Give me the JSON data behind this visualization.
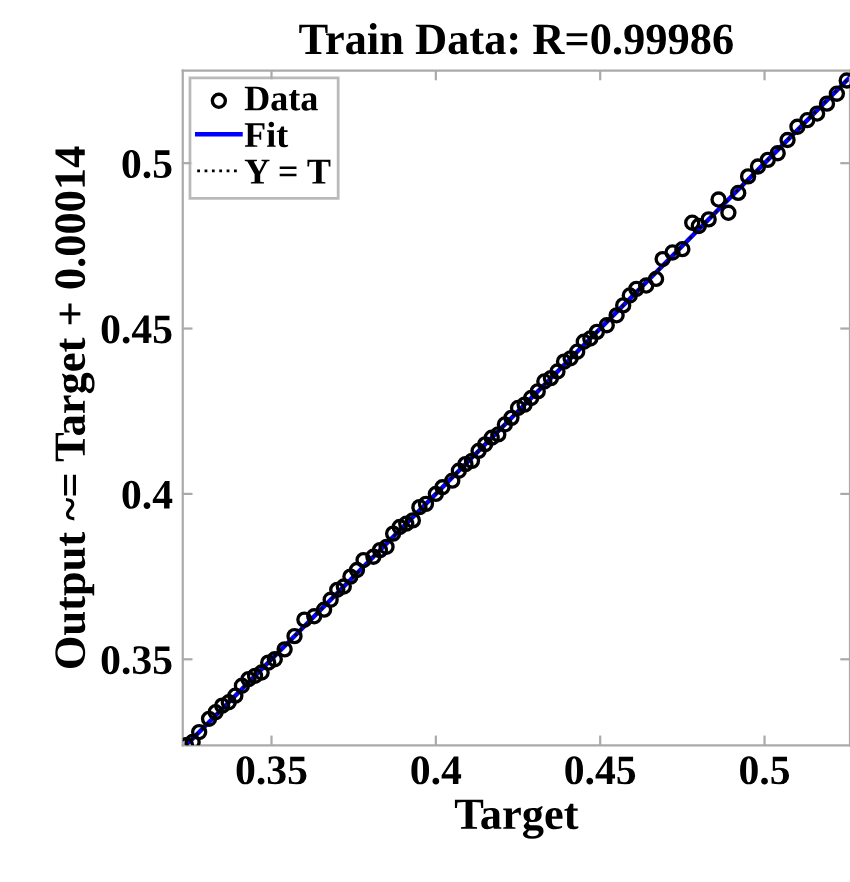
{
  "chart_data": {
    "type": "scatter",
    "title": "Train Data: R=0.99986",
    "xlabel": "Target",
    "ylabel": "Output ~= Target + 0.00014",
    "series": [
      {
        "name": "Data",
        "color": "#000000",
        "marker": "circle",
        "x": [
          0.324,
          0.326,
          0.328,
          0.331,
          0.333,
          0.335,
          0.337,
          0.339,
          0.341,
          0.343,
          0.345,
          0.347,
          0.349,
          0.351,
          0.354,
          0.357,
          0.36,
          0.363,
          0.366,
          0.368,
          0.37,
          0.372,
          0.374,
          0.376,
          0.378,
          0.381,
          0.383,
          0.385,
          0.387,
          0.389,
          0.391,
          0.393,
          0.395,
          0.397,
          0.4,
          0.402,
          0.405,
          0.407,
          0.409,
          0.411,
          0.413,
          0.415,
          0.417,
          0.419,
          0.421,
          0.423,
          0.425,
          0.427,
          0.429,
          0.431,
          0.433,
          0.435,
          0.437,
          0.439,
          0.441,
          0.443,
          0.445,
          0.447,
          0.449,
          0.452,
          0.455,
          0.457,
          0.459,
          0.461,
          0.464,
          0.467,
          0.469,
          0.472,
          0.475,
          0.478,
          0.48,
          0.483,
          0.486,
          0.489,
          0.492,
          0.495,
          0.498,
          0.501,
          0.504,
          0.507,
          0.51,
          0.513,
          0.516,
          0.519,
          0.522,
          0.525
        ],
        "values": [
          0.324,
          0.325,
          0.328,
          0.332,
          0.334,
          0.336,
          0.337,
          0.339,
          0.342,
          0.344,
          0.345,
          0.346,
          0.349,
          0.35,
          0.353,
          0.357,
          0.362,
          0.363,
          0.365,
          0.368,
          0.371,
          0.372,
          0.375,
          0.377,
          0.38,
          0.381,
          0.383,
          0.384,
          0.388,
          0.39,
          0.391,
          0.392,
          0.396,
          0.397,
          0.4,
          0.402,
          0.404,
          0.407,
          0.409,
          0.41,
          0.413,
          0.415,
          0.417,
          0.418,
          0.421,
          0.423,
          0.426,
          0.427,
          0.429,
          0.431,
          0.434,
          0.435,
          0.437,
          0.44,
          0.441,
          0.443,
          0.446,
          0.447,
          0.449,
          0.451,
          0.454,
          0.457,
          0.46,
          0.462,
          0.463,
          0.465,
          0.471,
          0.473,
          0.474,
          0.482,
          0.481,
          0.483,
          0.489,
          0.485,
          0.491,
          0.496,
          0.499,
          0.501,
          0.503,
          0.507,
          0.511,
          0.513,
          0.515,
          0.518,
          0.521,
          0.525
        ]
      },
      {
        "name": "Fit",
        "type": "line",
        "color": "#0000ff",
        "line_style": "solid",
        "x": [
          0.324,
          0.526
        ],
        "values": [
          0.324,
          0.526
        ]
      },
      {
        "name": "Y = T",
        "type": "line",
        "color": "#000000",
        "line_style": "dotted",
        "x": [
          0.324,
          0.526
        ],
        "values": [
          0.324,
          0.526
        ]
      }
    ],
    "xlim": [
      0.323,
      0.526
    ],
    "ylim": [
      0.324,
      0.528
    ],
    "xticks": [
      0.35,
      0.4,
      0.45,
      0.5
    ],
    "yticks": [
      0.35,
      0.4,
      0.45,
      0.5
    ],
    "legend": "top left",
    "grid": false
  }
}
